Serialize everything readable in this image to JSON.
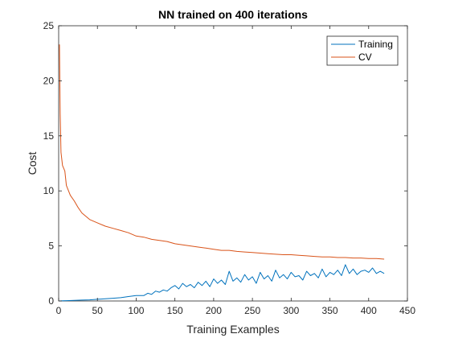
{
  "chart_data": {
    "type": "line",
    "title": "NN trained on 400 iterations",
    "xlabel": "Training Examples",
    "ylabel": "Cost",
    "xlim": [
      0,
      450
    ],
    "ylim": [
      0,
      25
    ],
    "xticks": [
      0,
      50,
      100,
      150,
      200,
      250,
      300,
      350,
      400,
      450
    ],
    "yticks": [
      0,
      5,
      10,
      15,
      20,
      25
    ],
    "grid": false,
    "legend_position": "top-right",
    "series": [
      {
        "name": "Training",
        "color": "#0072BD",
        "x": [
          1,
          5,
          10,
          20,
          30,
          40,
          50,
          60,
          70,
          80,
          90,
          100,
          110,
          115,
          120,
          125,
          130,
          135,
          140,
          145,
          150,
          155,
          160,
          165,
          170,
          175,
          180,
          185,
          190,
          195,
          200,
          205,
          210,
          215,
          220,
          225,
          230,
          235,
          240,
          245,
          250,
          255,
          260,
          265,
          270,
          275,
          280,
          285,
          290,
          295,
          300,
          305,
          310,
          315,
          320,
          325,
          330,
          335,
          340,
          345,
          350,
          355,
          360,
          365,
          370,
          375,
          380,
          385,
          390,
          395,
          400,
          405,
          410,
          415,
          420
        ],
        "values": [
          0.0,
          0.02,
          0.03,
          0.05,
          0.08,
          0.1,
          0.15,
          0.2,
          0.25,
          0.3,
          0.4,
          0.5,
          0.5,
          0.7,
          0.6,
          0.9,
          0.8,
          1.0,
          0.9,
          1.2,
          1.4,
          1.1,
          1.6,
          1.3,
          1.5,
          1.2,
          1.7,
          1.4,
          1.8,
          1.3,
          2.0,
          1.6,
          1.9,
          1.5,
          2.7,
          1.8,
          2.1,
          1.7,
          2.4,
          1.9,
          2.2,
          1.6,
          2.6,
          2.0,
          2.3,
          1.8,
          2.8,
          2.1,
          2.4,
          2.0,
          2.6,
          2.2,
          2.3,
          1.9,
          2.7,
          2.3,
          2.5,
          2.1,
          2.9,
          2.2,
          2.6,
          2.4,
          2.8,
          2.3,
          3.3,
          2.5,
          2.9,
          2.4,
          2.7,
          2.8,
          2.6,
          3.0,
          2.5,
          2.7,
          2.5
        ]
      },
      {
        "name": "CV",
        "color": "#D95319",
        "x": [
          1,
          2,
          3,
          5,
          8,
          10,
          15,
          20,
          25,
          30,
          40,
          50,
          60,
          70,
          80,
          90,
          100,
          110,
          120,
          130,
          140,
          150,
          160,
          170,
          180,
          190,
          200,
          210,
          220,
          230,
          240,
          250,
          260,
          270,
          280,
          290,
          300,
          310,
          320,
          330,
          340,
          350,
          360,
          370,
          380,
          390,
          400,
          410,
          420
        ],
        "values": [
          23.3,
          17.0,
          13.5,
          12.3,
          11.8,
          10.5,
          9.6,
          9.1,
          8.5,
          8.0,
          7.4,
          7.1,
          6.8,
          6.6,
          6.4,
          6.2,
          5.9,
          5.8,
          5.6,
          5.5,
          5.4,
          5.2,
          5.1,
          5.0,
          4.9,
          4.8,
          4.7,
          4.6,
          4.6,
          4.5,
          4.45,
          4.4,
          4.35,
          4.3,
          4.25,
          4.2,
          4.2,
          4.15,
          4.1,
          4.05,
          4.0,
          4.0,
          3.95,
          3.95,
          3.9,
          3.9,
          3.85,
          3.85,
          3.8
        ]
      }
    ]
  }
}
